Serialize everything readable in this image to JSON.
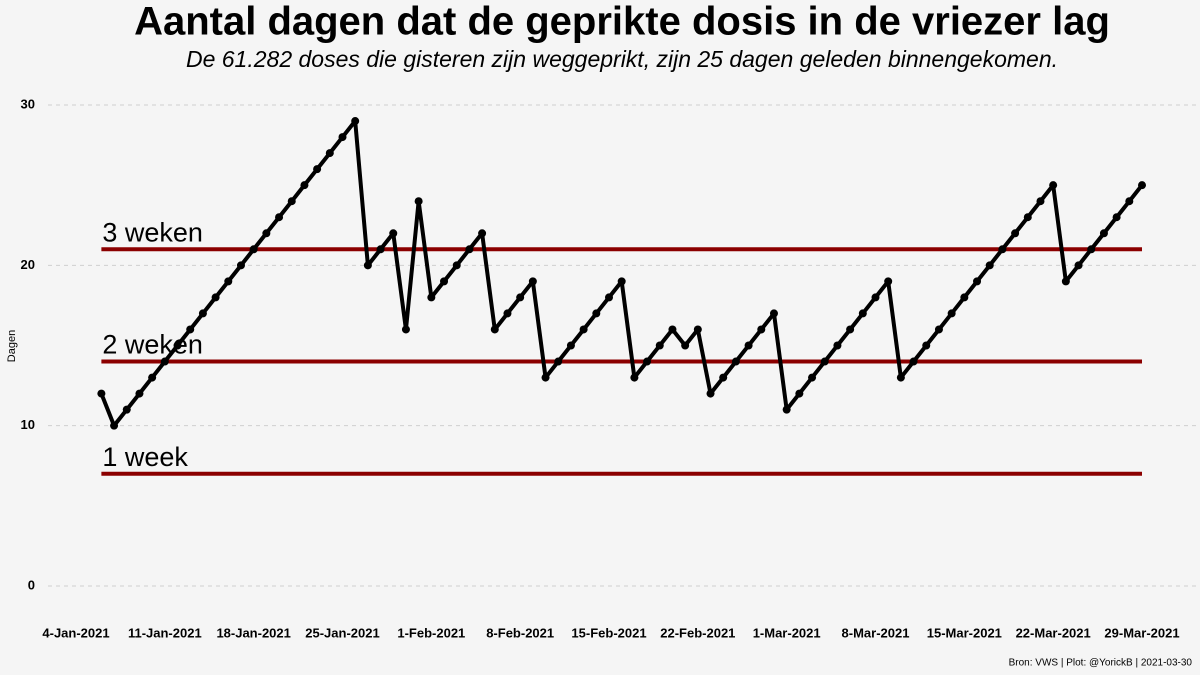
{
  "chart_data": {
    "type": "line",
    "title": "Aantal dagen dat de geprikte dosis in de vriezer lag",
    "subtitle": "De 61.282 doses die gisteren zijn weggeprikt, zijn 25 dagen geleden binnengekomen.",
    "ylabel": "Dagen",
    "caption": "Bron: VWS | Plot: @YorickB  |  2021-03-30",
    "x": [
      "2021-01-06",
      "2021-01-07",
      "2021-01-08",
      "2021-01-09",
      "2021-01-10",
      "2021-01-11",
      "2021-01-12",
      "2021-01-13",
      "2021-01-14",
      "2021-01-15",
      "2021-01-16",
      "2021-01-17",
      "2021-01-18",
      "2021-01-19",
      "2021-01-20",
      "2021-01-21",
      "2021-01-22",
      "2021-01-23",
      "2021-01-24",
      "2021-01-25",
      "2021-01-26",
      "2021-01-27",
      "2021-01-28",
      "2021-01-29",
      "2021-01-30",
      "2021-01-31",
      "2021-02-01",
      "2021-02-02",
      "2021-02-03",
      "2021-02-04",
      "2021-02-05",
      "2021-02-06",
      "2021-02-07",
      "2021-02-08",
      "2021-02-09",
      "2021-02-10",
      "2021-02-11",
      "2021-02-12",
      "2021-02-13",
      "2021-02-14",
      "2021-02-15",
      "2021-02-16",
      "2021-02-17",
      "2021-02-18",
      "2021-02-19",
      "2021-02-20",
      "2021-02-21",
      "2021-02-22",
      "2021-02-23",
      "2021-02-24",
      "2021-02-25",
      "2021-02-26",
      "2021-02-27",
      "2021-02-28",
      "2021-03-01",
      "2021-03-02",
      "2021-03-03",
      "2021-03-04",
      "2021-03-05",
      "2021-03-06",
      "2021-03-07",
      "2021-03-08",
      "2021-03-09",
      "2021-03-10",
      "2021-03-11",
      "2021-03-12",
      "2021-03-13",
      "2021-03-14",
      "2021-03-15",
      "2021-03-16",
      "2021-03-17",
      "2021-03-18",
      "2021-03-19",
      "2021-03-20",
      "2021-03-21",
      "2021-03-22",
      "2021-03-23",
      "2021-03-24",
      "2021-03-25",
      "2021-03-26",
      "2021-03-27",
      "2021-03-28",
      "2021-03-29"
    ],
    "series": [
      {
        "name": "Dagen",
        "color": "#000000",
        "values": [
          12,
          10,
          11,
          12,
          13,
          14,
          15,
          16,
          17,
          18,
          19,
          20,
          21,
          22,
          23,
          24,
          25,
          26,
          27,
          28,
          29,
          20,
          21,
          22,
          16,
          24,
          18,
          19,
          20,
          21,
          22,
          16,
          17,
          18,
          19,
          13,
          14,
          15,
          16,
          17,
          18,
          19,
          13,
          14,
          15,
          16,
          15,
          16,
          12,
          13,
          14,
          15,
          16,
          17,
          11,
          12,
          13,
          14,
          15,
          16,
          17,
          18,
          19,
          13,
          14,
          15,
          16,
          17,
          18,
          19,
          20,
          21,
          22,
          23,
          24,
          25,
          19,
          20,
          21,
          22,
          23,
          24,
          25
        ]
      }
    ],
    "hlines": [
      {
        "value": 7,
        "label": "1 week",
        "color": "#8b0000"
      },
      {
        "value": 14,
        "label": "2 weken",
        "color": "#8b0000"
      },
      {
        "value": 21,
        "label": "3 weken",
        "color": "#8b0000"
      }
    ],
    "xlim": [
      "2021-01-04",
      "2021-03-29"
    ],
    "xticks": [
      {
        "value": "2021-01-04",
        "label": "4-Jan-2021"
      },
      {
        "value": "2021-01-11",
        "label": "11-Jan-2021"
      },
      {
        "value": "2021-01-18",
        "label": "18-Jan-2021"
      },
      {
        "value": "2021-01-25",
        "label": "25-Jan-2021"
      },
      {
        "value": "2021-02-01",
        "label": "1-Feb-2021"
      },
      {
        "value": "2021-02-08",
        "label": "8-Feb-2021"
      },
      {
        "value": "2021-02-15",
        "label": "15-Feb-2021"
      },
      {
        "value": "2021-02-22",
        "label": "22-Feb-2021"
      },
      {
        "value": "2021-03-01",
        "label": "1-Mar-2021"
      },
      {
        "value": "2021-03-08",
        "label": "8-Mar-2021"
      },
      {
        "value": "2021-03-15",
        "label": "15-Mar-2021"
      },
      {
        "value": "2021-03-22",
        "label": "22-Mar-2021"
      },
      {
        "value": "2021-03-29",
        "label": "29-Mar-2021"
      }
    ],
    "ylim": [
      0,
      30
    ],
    "yticks": [
      0,
      10,
      20,
      30
    ],
    "grid": true
  }
}
